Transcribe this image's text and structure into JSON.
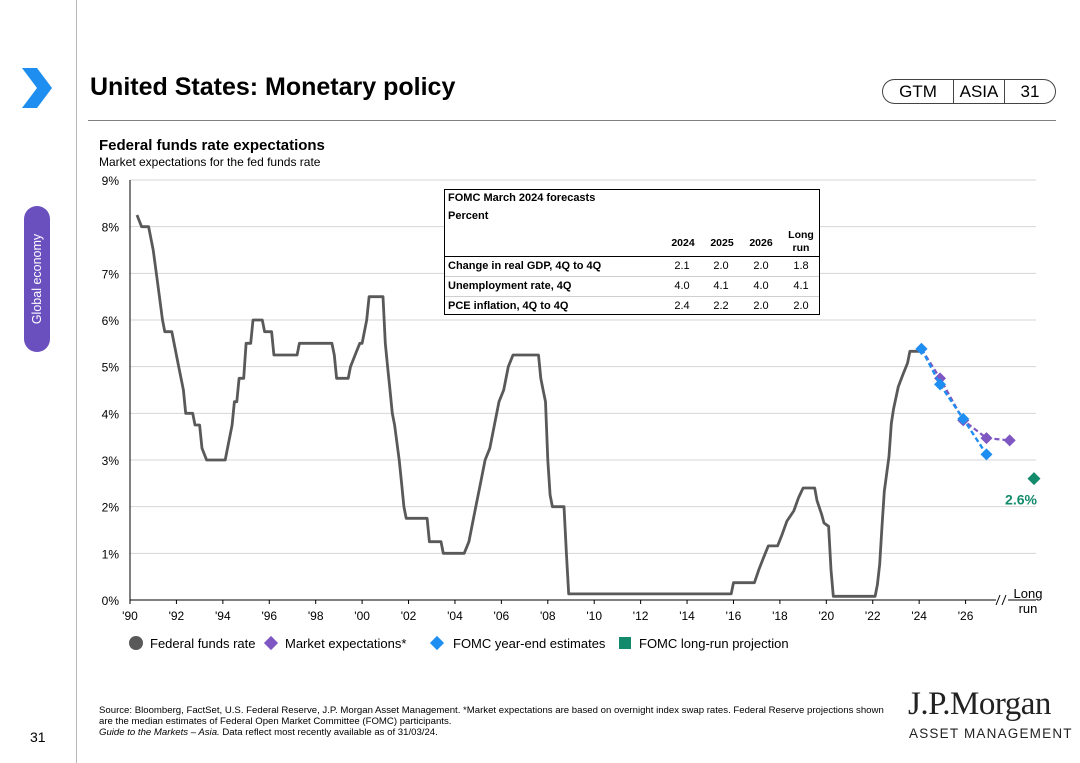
{
  "header": {
    "title": "United States: Monetary policy",
    "tag_gtm": "GTM",
    "tag_region": "ASIA",
    "tag_page": "31",
    "section": "Global economy",
    "page_number": "31"
  },
  "chart_data": {
    "type": "line",
    "title": "Federal funds rate expectations",
    "subtitle": "Market expectations for the fed funds rate",
    "ylim": [
      0,
      9
    ],
    "y_ticks": [
      "0%",
      "1%",
      "2%",
      "3%",
      "4%",
      "5%",
      "6%",
      "7%",
      "8%",
      "9%"
    ],
    "x_ticks": [
      "'90",
      "'92",
      "'94",
      "'96",
      "'98",
      "'00",
      "'02",
      "'04",
      "'06",
      "'08",
      "'10",
      "'12",
      "'14",
      "'16",
      "'18",
      "'20",
      "'22",
      "'24",
      "'26"
    ],
    "x_range": [
      1990,
      2028
    ],
    "long_run_label": "Long run",
    "series": [
      {
        "name": "Federal funds rate",
        "color": "#595959",
        "points": [
          [
            1990.3,
            8.25
          ],
          [
            1990.5,
            8.0
          ],
          [
            1990.8,
            8.0
          ],
          [
            1991.0,
            7.5
          ],
          [
            1991.2,
            6.75
          ],
          [
            1991.4,
            6.0
          ],
          [
            1991.5,
            5.75
          ],
          [
            1991.8,
            5.75
          ],
          [
            1992.1,
            5.0
          ],
          [
            1992.3,
            4.5
          ],
          [
            1992.4,
            4.0
          ],
          [
            1992.7,
            4.0
          ],
          [
            1992.8,
            3.75
          ],
          [
            1993.0,
            3.75
          ],
          [
            1993.1,
            3.25
          ],
          [
            1993.3,
            3.0
          ],
          [
            1994.1,
            3.0
          ],
          [
            1994.2,
            3.25
          ],
          [
            1994.4,
            3.75
          ],
          [
            1994.5,
            4.25
          ],
          [
            1994.6,
            4.25
          ],
          [
            1994.7,
            4.75
          ],
          [
            1994.9,
            4.75
          ],
          [
            1995.0,
            5.5
          ],
          [
            1995.2,
            5.5
          ],
          [
            1995.3,
            6.0
          ],
          [
            1995.7,
            6.0
          ],
          [
            1995.8,
            5.75
          ],
          [
            1996.1,
            5.75
          ],
          [
            1996.2,
            5.25
          ],
          [
            1997.2,
            5.25
          ],
          [
            1997.3,
            5.5
          ],
          [
            1998.7,
            5.5
          ],
          [
            1998.8,
            5.25
          ],
          [
            1998.9,
            4.75
          ],
          [
            1999.4,
            4.75
          ],
          [
            1999.5,
            5.0
          ],
          [
            1999.7,
            5.25
          ],
          [
            1999.9,
            5.5
          ],
          [
            2000.0,
            5.5
          ],
          [
            2000.1,
            5.75
          ],
          [
            2000.2,
            6.0
          ],
          [
            2000.3,
            6.5
          ],
          [
            2000.9,
            6.5
          ],
          [
            2001.0,
            5.5
          ],
          [
            2001.1,
            5.0
          ],
          [
            2001.2,
            4.5
          ],
          [
            2001.3,
            4.0
          ],
          [
            2001.4,
            3.75
          ],
          [
            2001.6,
            3.0
          ],
          [
            2001.7,
            2.5
          ],
          [
            2001.8,
            2.0
          ],
          [
            2001.9,
            1.75
          ],
          [
            2002.8,
            1.75
          ],
          [
            2002.9,
            1.25
          ],
          [
            2003.4,
            1.25
          ],
          [
            2003.5,
            1.0
          ],
          [
            2004.4,
            1.0
          ],
          [
            2004.6,
            1.25
          ],
          [
            2004.8,
            1.75
          ],
          [
            2004.9,
            2.0
          ],
          [
            2005.1,
            2.5
          ],
          [
            2005.3,
            3.0
          ],
          [
            2005.5,
            3.25
          ],
          [
            2005.7,
            3.75
          ],
          [
            2005.9,
            4.25
          ],
          [
            2006.1,
            4.5
          ],
          [
            2006.3,
            5.0
          ],
          [
            2006.5,
            5.25
          ],
          [
            2007.6,
            5.25
          ],
          [
            2007.7,
            4.75
          ],
          [
            2007.8,
            4.5
          ],
          [
            2007.9,
            4.25
          ],
          [
            2008.0,
            3.0
          ],
          [
            2008.1,
            2.25
          ],
          [
            2008.2,
            2.0
          ],
          [
            2008.7,
            2.0
          ],
          [
            2008.8,
            1.0
          ],
          [
            2008.9,
            0.13
          ],
          [
            2015.9,
            0.13
          ],
          [
            2016.0,
            0.37
          ],
          [
            2016.9,
            0.37
          ],
          [
            2017.1,
            0.66
          ],
          [
            2017.3,
            0.91
          ],
          [
            2017.5,
            1.16
          ],
          [
            2017.9,
            1.16
          ],
          [
            2018.1,
            1.41
          ],
          [
            2018.3,
            1.69
          ],
          [
            2018.6,
            1.91
          ],
          [
            2018.8,
            2.19
          ],
          [
            2019.0,
            2.4
          ],
          [
            2019.5,
            2.4
          ],
          [
            2019.6,
            2.13
          ],
          [
            2019.8,
            1.83
          ],
          [
            2019.9,
            1.65
          ],
          [
            2020.1,
            1.58
          ],
          [
            2020.2,
            0.65
          ],
          [
            2020.3,
            0.08
          ],
          [
            2022.1,
            0.08
          ],
          [
            2022.2,
            0.33
          ],
          [
            2022.3,
            0.77
          ],
          [
            2022.4,
            1.58
          ],
          [
            2022.5,
            2.33
          ],
          [
            2022.7,
            3.08
          ],
          [
            2022.8,
            3.78
          ],
          [
            2022.9,
            4.1
          ],
          [
            2023.0,
            4.33
          ],
          [
            2023.1,
            4.57
          ],
          [
            2023.3,
            4.83
          ],
          [
            2023.5,
            5.08
          ],
          [
            2023.6,
            5.33
          ],
          [
            2024.0,
            5.33
          ]
        ]
      },
      {
        "name": "Market expectations*",
        "color": "#7e57c2",
        "points": [
          [
            2024.1,
            5.38
          ],
          [
            2024.9,
            4.75
          ],
          [
            2025.9,
            3.85
          ],
          [
            2026.9,
            3.47
          ],
          [
            2027.9,
            3.42
          ]
        ]
      },
      {
        "name": "FOMC year-end estimates",
        "color": "#1f8ef1",
        "points": [
          [
            2024.1,
            5.38
          ],
          [
            2024.9,
            4.62
          ],
          [
            2025.9,
            3.88
          ],
          [
            2026.9,
            3.12
          ]
        ]
      },
      {
        "name": "FOMC long-run projection",
        "color": "#138a6b",
        "value": 2.6,
        "label": "2.6%"
      }
    ],
    "legend": [
      "Federal funds rate",
      "Market expectations*",
      "FOMC year-end estimates",
      "FOMC long-run projection"
    ],
    "table": {
      "title": "FOMC March 2024 forecasts",
      "subtitle": "Percent",
      "columns": [
        "2024",
        "2025",
        "2026",
        "Long run"
      ],
      "rows": [
        {
          "label": "Change in real GDP, 4Q to 4Q",
          "values": [
            "2.1",
            "2.0",
            "2.0",
            "1.8"
          ]
        },
        {
          "label": "Unemployment rate, 4Q",
          "values": [
            "4.0",
            "4.1",
            "4.0",
            "4.1"
          ]
        },
        {
          "label": "PCE inflation, 4Q to 4Q",
          "values": [
            "2.4",
            "2.2",
            "2.0",
            "2.0"
          ]
        }
      ]
    }
  },
  "colors": {
    "accent_blue": "#1f8ef1",
    "purple": "#7e57c2",
    "section_pill": "#6a4fbf",
    "green": "#138a6b"
  },
  "footer": {
    "source_1": "Source: Bloomberg, FactSet, U.S. Federal Reserve, J.P. Morgan Asset Management. *Market expectations are based on overnight index swap rates. Federal Reserve projections shown are the median estimates of Federal Open Market Committee (FOMC) participants.",
    "source_2_italic": "Guide to the Markets – Asia.",
    "source_2_rest": " Data reflect most recently available as of 31/03/24.",
    "logo_main": "J.P.Morgan",
    "logo_sub": "ASSET MANAGEMENT"
  }
}
